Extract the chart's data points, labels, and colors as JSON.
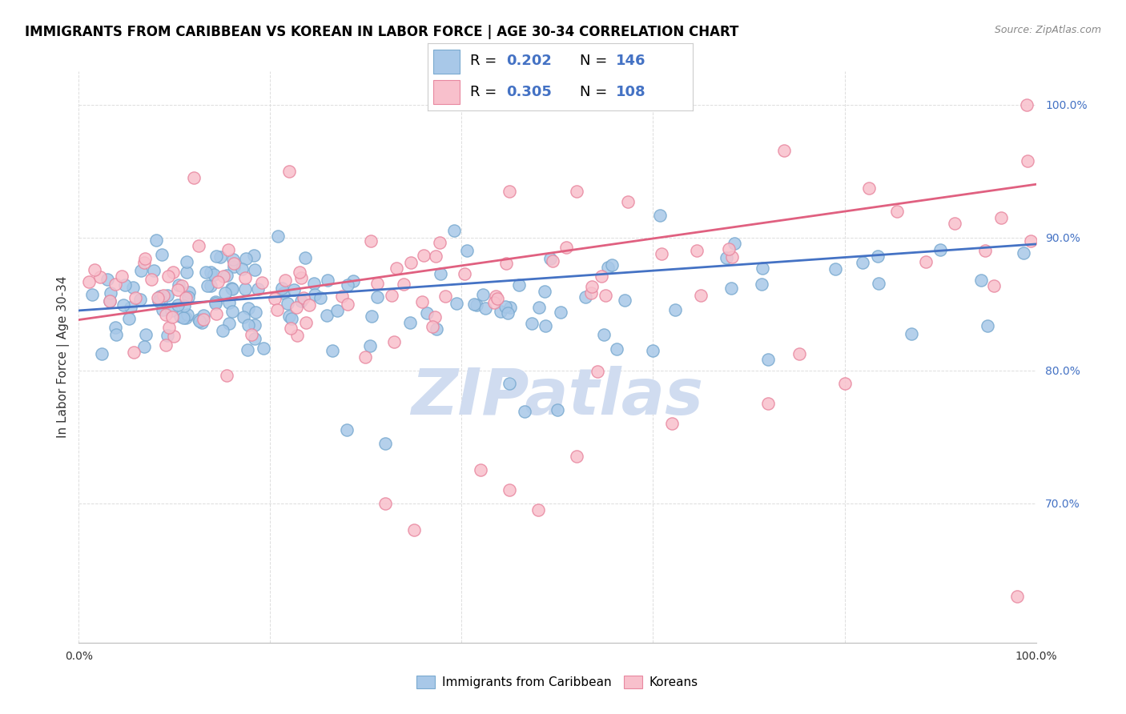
{
  "title": "IMMIGRANTS FROM CARIBBEAN VS KOREAN IN LABOR FORCE | AGE 30-34 CORRELATION CHART",
  "source": "Source: ZipAtlas.com",
  "ylabel": "In Labor Force | Age 30-34",
  "xlim": [
    0.0,
    1.0
  ],
  "ylim": [
    0.595,
    1.025
  ],
  "yticks": [
    0.7,
    0.8,
    0.9,
    1.0
  ],
  "ytick_labels": [
    "70.0%",
    "80.0%",
    "90.0%",
    "100.0%"
  ],
  "xticks": [
    0.0,
    0.2,
    0.4,
    0.6,
    0.8,
    1.0
  ],
  "xtick_labels": [
    "0.0%",
    "",
    "",
    "",
    "",
    "100.0%"
  ],
  "legend_labels": [
    "Immigrants from Caribbean",
    "Koreans"
  ],
  "blue_color": "#A8C8E8",
  "blue_edge_color": "#7AAAD0",
  "pink_color": "#F8C0CC",
  "pink_edge_color": "#E888A0",
  "blue_line_color": "#4472C4",
  "pink_line_color": "#E06080",
  "blue_intercept": 0.845,
  "blue_slope": 0.05,
  "pink_intercept": 0.838,
  "pink_slope": 0.102,
  "watermark": "ZIPatlas",
  "watermark_color": "#D0DCF0",
  "title_fontsize": 12,
  "axis_label_fontsize": 11,
  "tick_fontsize": 10,
  "legend_R_blue": "0.202",
  "legend_N_blue": "146",
  "legend_R_pink": "0.305",
  "legend_N_pink": "108"
}
